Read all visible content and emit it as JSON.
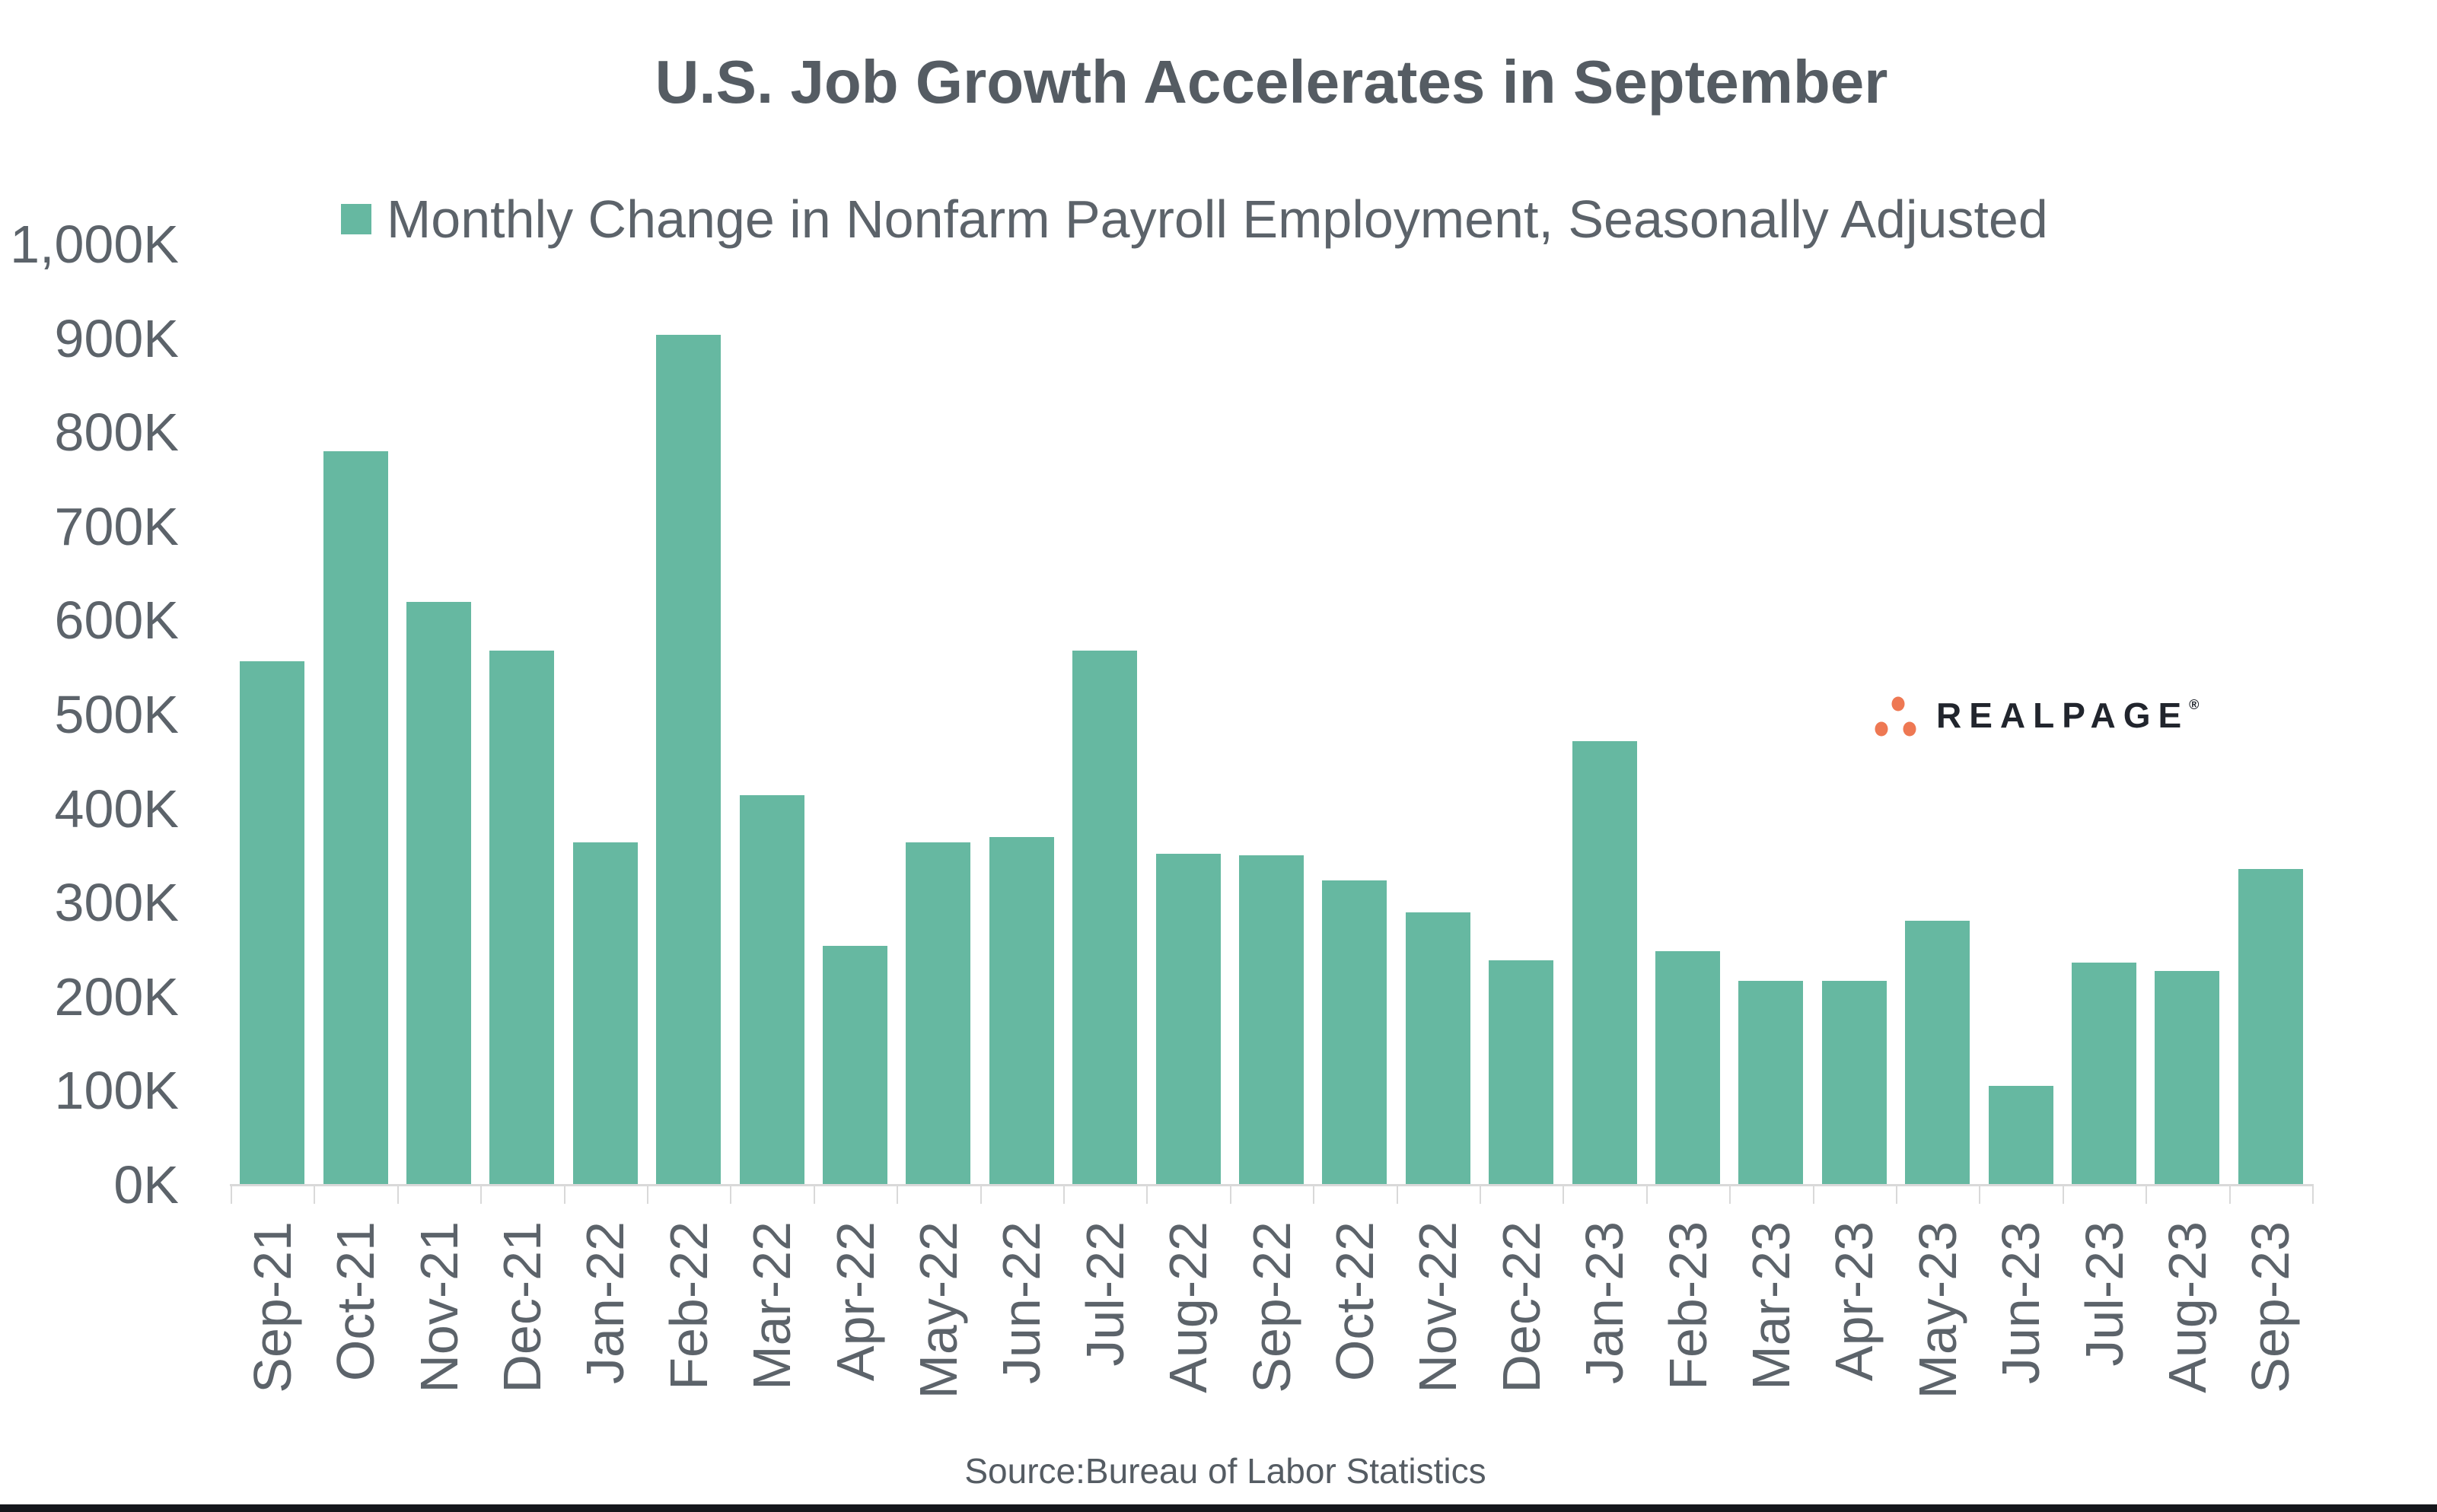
{
  "title": "U.S. Job Growth Accelerates in September",
  "legend": {
    "label": "Monthly Change in Nonfarm Payroll Employment, Seasonally Adjusted"
  },
  "source": "Source:Bureau of Labor Statistics",
  "logo": {
    "wordmark": "REALPAGE",
    "registered_mark": "®"
  },
  "colors": {
    "bar": "#66b8a1",
    "title_text": "#555c63",
    "axis_text": "#5c636a",
    "tick_line": "#d9d9d9",
    "logo_dot": "#ee7853",
    "logo_text": "#21252d",
    "footer_bar": "#15171c"
  },
  "y_axis": {
    "tick_labels": [
      "0K",
      "100K",
      "200K",
      "300K",
      "400K",
      "500K",
      "600K",
      "700K",
      "800K",
      "900K",
      "1,000K"
    ],
    "tick_values": [
      0,
      100,
      200,
      300,
      400,
      500,
      600,
      700,
      800,
      900,
      1000
    ]
  },
  "chart_data": {
    "type": "bar",
    "title": "U.S. Job Growth Accelerates in September",
    "legend_label": "Monthly Change in Nonfarm Payroll Employment, Seasonally Adjusted",
    "categories": [
      "Sep-21",
      "Oct-21",
      "Nov-21",
      "Dec-21",
      "Jan-22",
      "Feb-22",
      "Mar-22",
      "Apr-22",
      "May-22",
      "Jun-22",
      "Jul-22",
      "Aug-22",
      "Sep-22",
      "Oct-22",
      "Nov-22",
      "Dec-22",
      "Jan-23",
      "Feb-23",
      "Mar-23",
      "Apr-23",
      "May-23",
      "Jun-23",
      "Jul-23",
      "Aug-23",
      "Sep-23"
    ],
    "values": [
      557,
      780,
      620,
      568,
      364,
      904,
      414,
      254,
      364,
      370,
      568,
      352,
      350,
      324,
      290,
      239,
      472,
      248,
      217,
      217,
      281,
      105,
      236,
      227,
      336
    ],
    "unit": "K",
    "xlabel": "",
    "ylabel": "",
    "ylim": [
      0,
      1000
    ],
    "ytick_step": 100,
    "grid": false,
    "legend_position": "top-left",
    "source": "Source:Bureau of Labor Statistics"
  }
}
